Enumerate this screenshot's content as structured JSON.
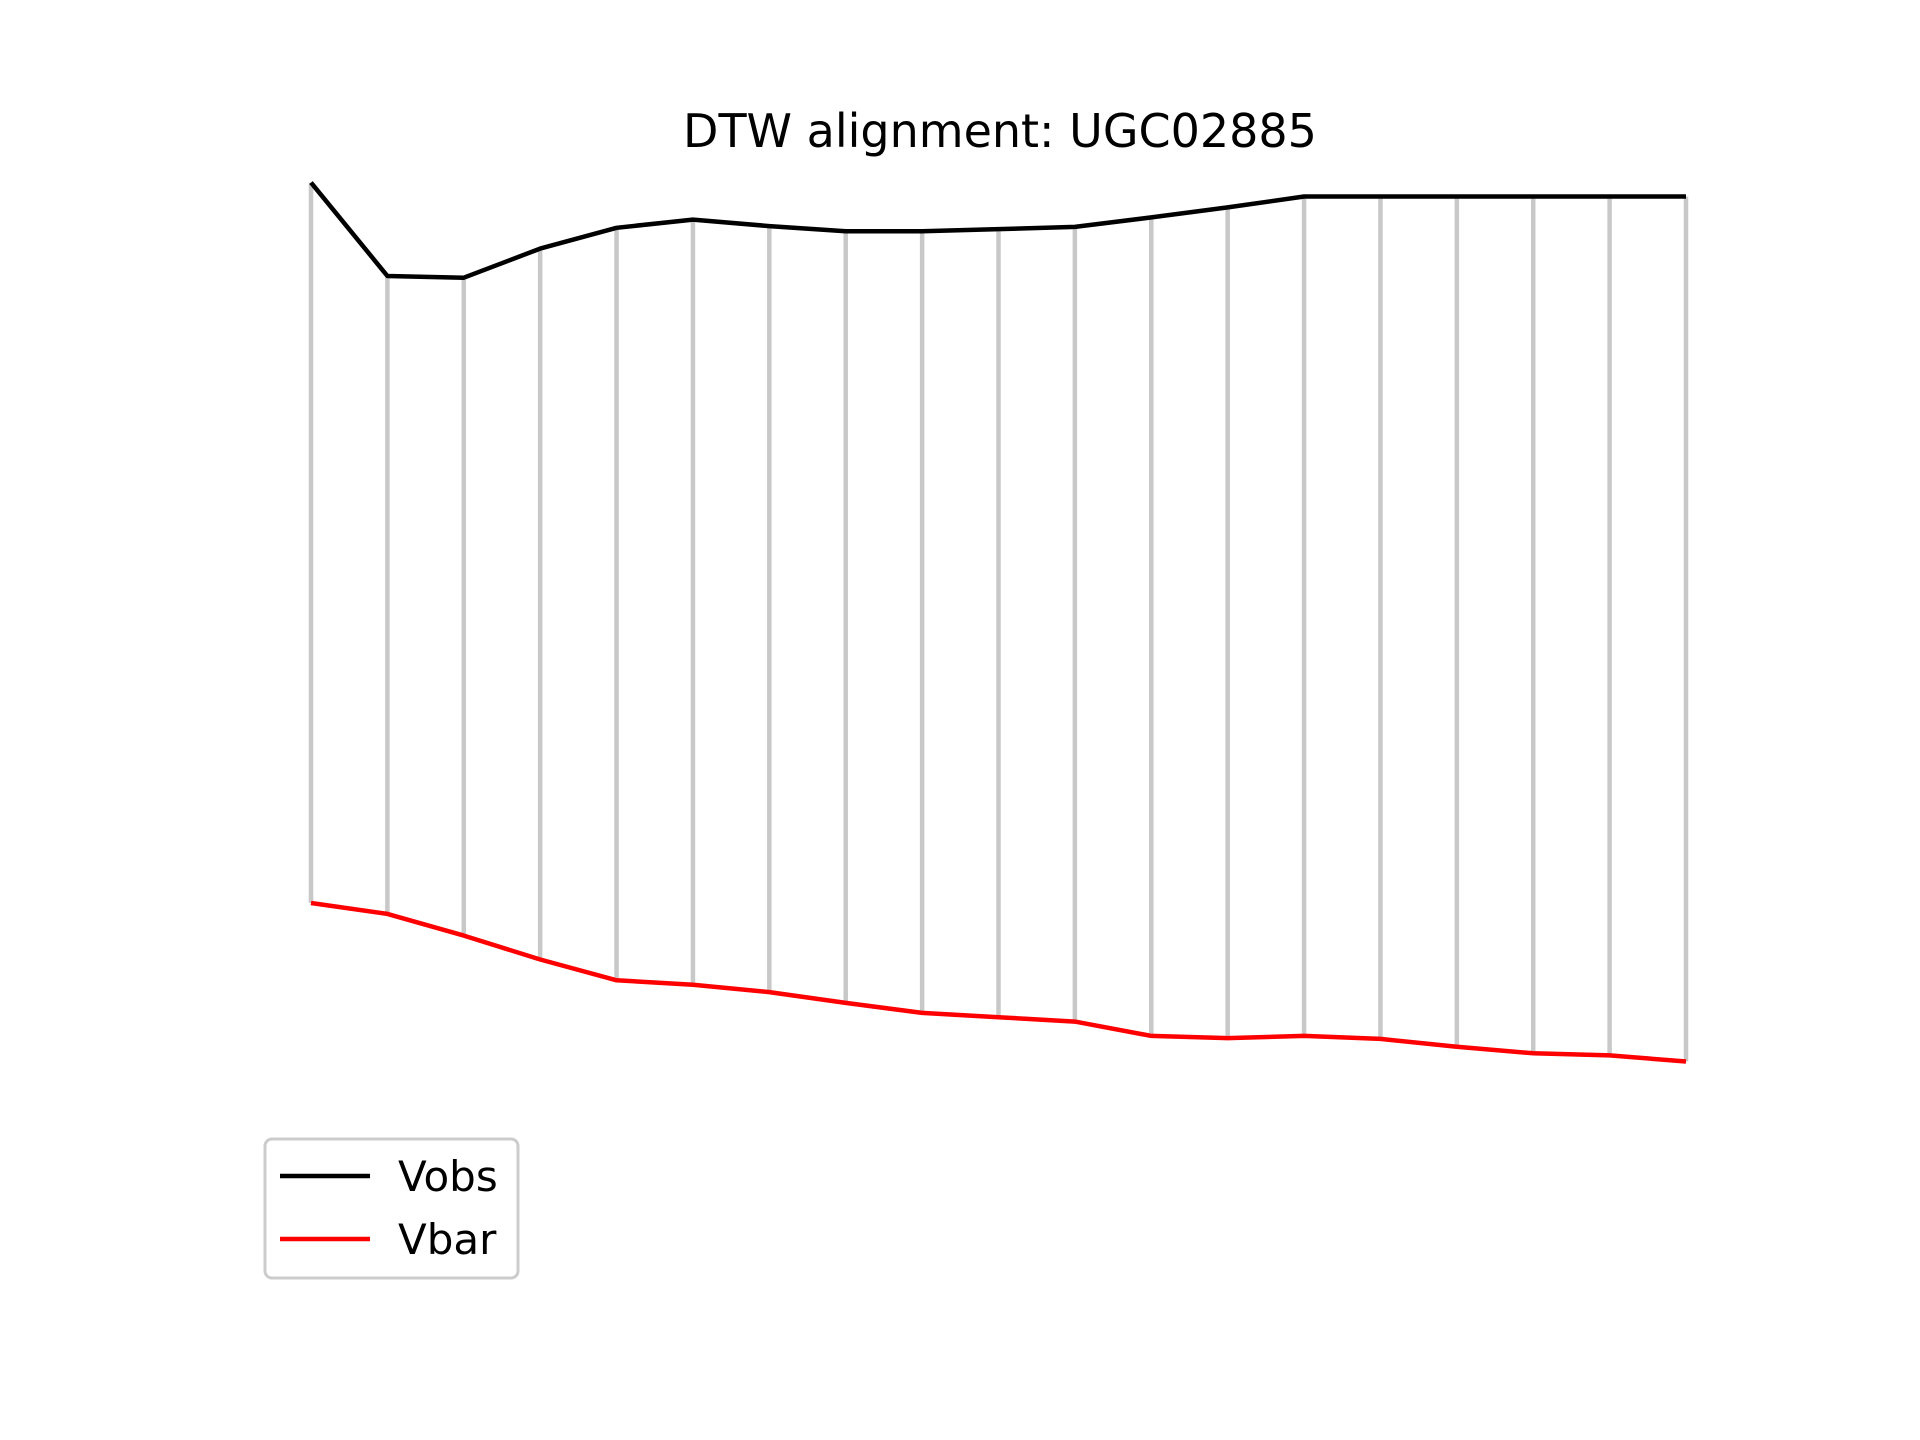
{
  "chart_data": {
    "type": "line",
    "title": "DTW alignment: UGC02885",
    "xlabel": "",
    "ylabel": "",
    "axes_visible": false,
    "grid": false,
    "legend_position": "lower-left",
    "alignment_line_color": "#c8c8c8",
    "y_unit": "normalized",
    "ylim": [
      -1.6,
      1.0
    ],
    "x": [
      0,
      1,
      2,
      3,
      4,
      5,
      6,
      7,
      8,
      9,
      10,
      11,
      12,
      13,
      14,
      15,
      16,
      17,
      18
    ],
    "series": [
      {
        "name": "Vobs",
        "color": "#000000",
        "values": [
          0.987,
          0.772,
          0.768,
          0.835,
          0.883,
          0.902,
          0.887,
          0.875,
          0.875,
          0.88,
          0.885,
          0.907,
          0.93,
          0.955,
          0.955,
          0.955,
          0.955,
          0.955,
          0.955
        ]
      },
      {
        "name": "Vbar",
        "color": "#ff0000",
        "values": [
          -0.672,
          -0.697,
          -0.747,
          -0.802,
          -0.85,
          -0.86,
          -0.877,
          -0.902,
          -0.925,
          -0.935,
          -0.945,
          -0.978,
          -0.983,
          -0.978,
          -0.985,
          -1.003,
          -1.018,
          -1.023,
          -1.037
        ]
      }
    ]
  }
}
